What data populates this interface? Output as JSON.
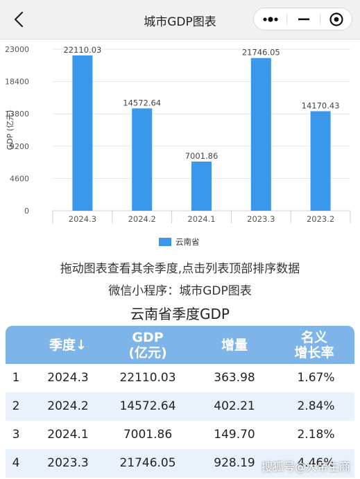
{
  "nav": {
    "title": "城市GDP图表",
    "back_icon": "chevron-left-icon",
    "more_icon": "more-dots-icon",
    "minimize_icon": "minimize-icon",
    "close_icon": "target-close-icon"
  },
  "chart_data": {
    "type": "bar",
    "categories": [
      "2024.3",
      "2024.2",
      "2024.1",
      "2023.3",
      "2023.2"
    ],
    "series": [
      {
        "name": "云南省",
        "values": [
          22110.03,
          14572.64,
          7001.86,
          21746.05,
          14170.43
        ]
      }
    ],
    "data_labels": [
      "22110.03",
      "14572.64",
      "7001.86",
      "21746.05",
      "14170.43"
    ],
    "ylabel": "GDP (亿元)",
    "yticks": [
      "0",
      "4600",
      "9200",
      "13800",
      "18400",
      "23000"
    ],
    "ylim": [
      0,
      23000
    ],
    "bar_color": "#3a97ea",
    "legend_position": "bottom"
  },
  "hints": {
    "line1": "拖动图表查看其余季度,点击列表顶部排序数据",
    "line2": "微信小程序：城市GDP图表"
  },
  "table": {
    "title": "云南省季度GDP",
    "header_color": "#7fb4e8",
    "headers": {
      "quarter": "季度↓",
      "gdp_line1": "GDP",
      "gdp_line2": "(亿元)",
      "increase": "增量",
      "growth_line1": "名义",
      "growth_line2": "增长率"
    },
    "rows": [
      {
        "rank": "1",
        "quarter": "2024.3",
        "gdp": "22110.03",
        "increase": "363.98",
        "growth": "1.67%"
      },
      {
        "rank": "2",
        "quarter": "2024.2",
        "gdp": "14572.64",
        "increase": "402.21",
        "growth": "2.84%"
      },
      {
        "rank": "3",
        "quarter": "2024.1",
        "gdp": "7001.86",
        "increase": "149.70",
        "growth": "2.18%"
      },
      {
        "rank": "4",
        "quarter": "2023.3",
        "gdp": "21746.05",
        "increase": "928.19",
        "growth": "4.46%"
      }
    ]
  },
  "watermark": "搜狐号@大帝生商"
}
